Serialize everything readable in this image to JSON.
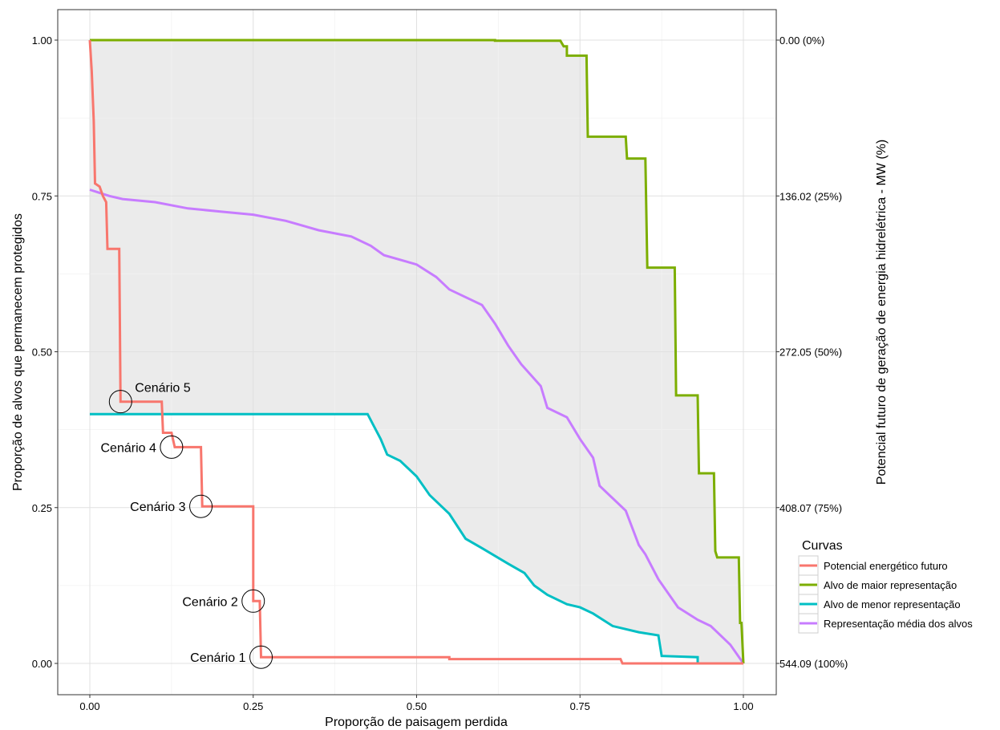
{
  "chart_data": {
    "type": "line",
    "xlabel": "Proporção de paisagem perdida",
    "ylabel": "Proporção de alvos que permanecem protegidos",
    "y2label": "Potencial futuro de geração de energia hidrelétrica - MW (%)",
    "xlim": [
      0,
      1
    ],
    "ylim": [
      0,
      1
    ],
    "x_ticks": [
      0,
      0.25,
      0.5,
      0.75,
      1
    ],
    "x_tick_labels": [
      "0.00",
      "0.25",
      "0.50",
      "0.75",
      "1.00"
    ],
    "y_ticks": [
      0,
      0.25,
      0.5,
      0.75,
      1
    ],
    "y_tick_labels": [
      "0.00",
      "0.25",
      "0.50",
      "0.75",
      "1.00"
    ],
    "y2_ticks": [
      1,
      0.75,
      0.5,
      0.25,
      0
    ],
    "y2_tick_labels": [
      "0.00 (0%)",
      "136.02 (25%)",
      "272.05 (50%)",
      "408.07 (75%)",
      "544.09 (100%)"
    ],
    "grid": true,
    "legend": {
      "title": "Curvas",
      "placement": "right",
      "entries": [
        "Potencial energético futuro",
        "Alvo de maior representação",
        "Alvo de menor representação",
        "Representação média dos alvos"
      ]
    },
    "shaded_band": {
      "between": [
        "Alvo de menor representação",
        "Alvo de maior representação"
      ],
      "color": "#ebebeb"
    },
    "series": [
      {
        "legend_index": 0,
        "color": "#f8766d",
        "points": [
          [
            0,
            1
          ],
          [
            0.003,
            0.95
          ],
          [
            0.006,
            0.87
          ],
          [
            0.008,
            0.77
          ],
          [
            0.015,
            0.765
          ],
          [
            0.02,
            0.75
          ],
          [
            0.025,
            0.74
          ],
          [
            0.027,
            0.665
          ],
          [
            0.045,
            0.665
          ],
          [
            0.047,
            0.42
          ],
          [
            0.11,
            0.42
          ],
          [
            0.112,
            0.37
          ],
          [
            0.125,
            0.37
          ],
          [
            0.13,
            0.347
          ],
          [
            0.17,
            0.347
          ],
          [
            0.172,
            0.252
          ],
          [
            0.25,
            0.252
          ],
          [
            0.25,
            0.1
          ],
          [
            0.26,
            0.1
          ],
          [
            0.262,
            0.01
          ],
          [
            0.55,
            0.01
          ],
          [
            0.55,
            0.007
          ],
          [
            0.812,
            0.007
          ],
          [
            0.815,
            0
          ],
          [
            1,
            0
          ]
        ]
      },
      {
        "legend_index": 1,
        "color": "#7cae00",
        "points": [
          [
            0,
            1
          ],
          [
            0.62,
            1
          ],
          [
            0.62,
            0.999
          ],
          [
            0.72,
            0.999
          ],
          [
            0.725,
            0.99
          ],
          [
            0.73,
            0.99
          ],
          [
            0.73,
            0.975
          ],
          [
            0.76,
            0.975
          ],
          [
            0.762,
            0.845
          ],
          [
            0.82,
            0.845
          ],
          [
            0.822,
            0.81
          ],
          [
            0.85,
            0.81
          ],
          [
            0.853,
            0.635
          ],
          [
            0.895,
            0.635
          ],
          [
            0.897,
            0.43
          ],
          [
            0.93,
            0.43
          ],
          [
            0.932,
            0.305
          ],
          [
            0.955,
            0.305
          ],
          [
            0.957,
            0.18
          ],
          [
            0.96,
            0.17
          ],
          [
            0.993,
            0.17
          ],
          [
            0.995,
            0.065
          ],
          [
            0.997,
            0.065
          ],
          [
            1,
            0
          ]
        ]
      },
      {
        "legend_index": 2,
        "color": "#00bfc4",
        "points": [
          [
            0,
            0.4
          ],
          [
            0.425,
            0.4
          ],
          [
            0.435,
            0.38
          ],
          [
            0.445,
            0.36
          ],
          [
            0.455,
            0.335
          ],
          [
            0.475,
            0.325
          ],
          [
            0.5,
            0.3
          ],
          [
            0.52,
            0.27
          ],
          [
            0.55,
            0.24
          ],
          [
            0.575,
            0.2
          ],
          [
            0.6,
            0.185
          ],
          [
            0.64,
            0.16
          ],
          [
            0.665,
            0.145
          ],
          [
            0.68,
            0.125
          ],
          [
            0.7,
            0.11
          ],
          [
            0.73,
            0.095
          ],
          [
            0.75,
            0.09
          ],
          [
            0.77,
            0.08
          ],
          [
            0.8,
            0.06
          ],
          [
            0.84,
            0.05
          ],
          [
            0.87,
            0.045
          ],
          [
            0.875,
            0.012
          ],
          [
            0.93,
            0.01
          ],
          [
            0.93,
            0
          ],
          [
            1,
            0
          ]
        ]
      },
      {
        "legend_index": 3,
        "color": "#c77cff",
        "points": [
          [
            0,
            0.76
          ],
          [
            0.03,
            0.75
          ],
          [
            0.05,
            0.745
          ],
          [
            0.1,
            0.74
          ],
          [
            0.15,
            0.73
          ],
          [
            0.2,
            0.725
          ],
          [
            0.25,
            0.72
          ],
          [
            0.3,
            0.71
          ],
          [
            0.35,
            0.695
          ],
          [
            0.4,
            0.685
          ],
          [
            0.43,
            0.67
          ],
          [
            0.45,
            0.655
          ],
          [
            0.5,
            0.64
          ],
          [
            0.53,
            0.62
          ],
          [
            0.55,
            0.6
          ],
          [
            0.6,
            0.575
          ],
          [
            0.62,
            0.545
          ],
          [
            0.64,
            0.51
          ],
          [
            0.66,
            0.48
          ],
          [
            0.69,
            0.445
          ],
          [
            0.7,
            0.41
          ],
          [
            0.73,
            0.395
          ],
          [
            0.75,
            0.36
          ],
          [
            0.77,
            0.33
          ],
          [
            0.78,
            0.285
          ],
          [
            0.82,
            0.245
          ],
          [
            0.84,
            0.19
          ],
          [
            0.85,
            0.175
          ],
          [
            0.87,
            0.135
          ],
          [
            0.9,
            0.09
          ],
          [
            0.93,
            0.07
          ],
          [
            0.95,
            0.06
          ],
          [
            0.98,
            0.03
          ],
          [
            1,
            0
          ]
        ]
      }
    ],
    "annotations": [
      {
        "text": "Cenário 5",
        "x": 0.047,
        "y": 0.42,
        "label_side": "right-above"
      },
      {
        "text": "Cenário 4",
        "x": 0.125,
        "y": 0.347,
        "label_side": "left"
      },
      {
        "text": "Cenário 3",
        "x": 0.17,
        "y": 0.252,
        "label_side": "left"
      },
      {
        "text": "Cenário 2",
        "x": 0.25,
        "y": 0.1,
        "label_side": "left"
      },
      {
        "text": "Cenário 1",
        "x": 0.262,
        "y": 0.01,
        "label_side": "left"
      }
    ]
  }
}
